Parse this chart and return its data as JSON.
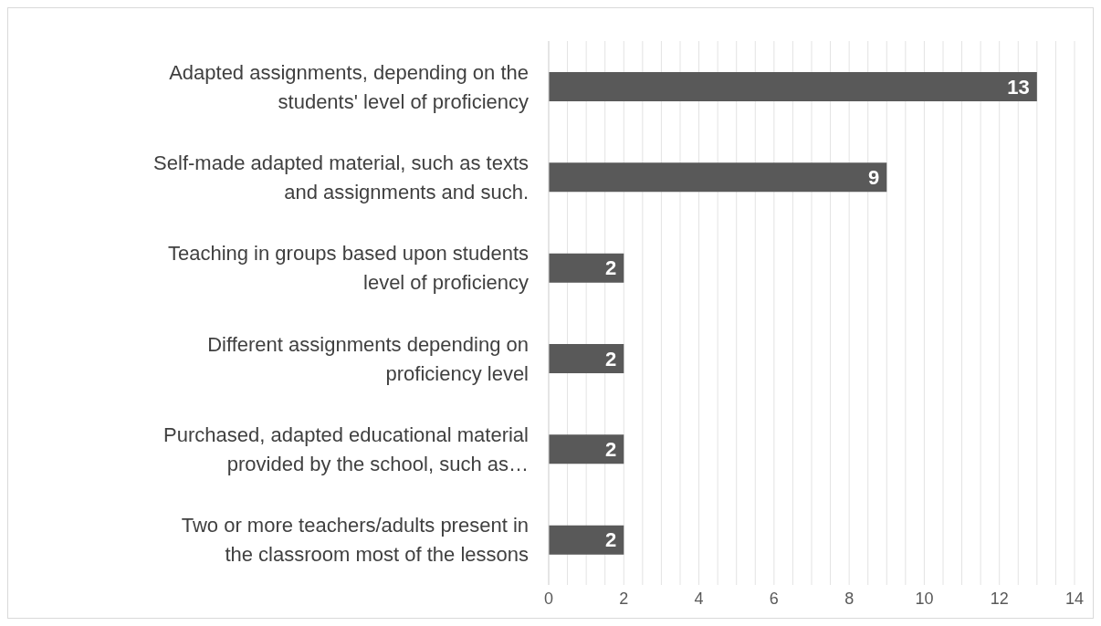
{
  "chart_data": {
    "type": "bar",
    "orientation": "horizontal",
    "categories": [
      "Adapted assignments, depending on the students' level of proficiency",
      "Self-made adapted material, such as texts and assignments and such.",
      "Teaching in groups based upon students level of proficiency",
      "Different assignments depending on proficiency level",
      "Purchased, adapted educational material provided by the school, such as…",
      "Two or more teachers/adults present in the classroom most of the lessons"
    ],
    "values": [
      13,
      9,
      2,
      2,
      2,
      2
    ],
    "color": "#595959",
    "data_labels": true,
    "xlim": [
      0,
      14
    ],
    "xticks": [
      0,
      {
        "value": 0.5,
        "label": null
      },
      {
        "value": 1,
        "label": null
      },
      {
        "value": 1.5,
        "label": null
      },
      2,
      {
        "value": 2.5,
        "label": null
      },
      {
        "value": 3,
        "label": null
      },
      {
        "value": 3.5,
        "label": null
      },
      4,
      {
        "value": 4.5,
        "label": null
      },
      {
        "value": 5,
        "label": null
      },
      {
        "value": 5.5,
        "label": null
      },
      6,
      {
        "value": 6.5,
        "label": null
      },
      {
        "value": 7,
        "label": null
      },
      {
        "value": 7.5,
        "label": null
      },
      8,
      {
        "value": 8.5,
        "label": null
      },
      {
        "value": 9,
        "label": null
      },
      {
        "value": 9.5,
        "label": null
      },
      10,
      {
        "value": 10.5,
        "label": null
      },
      {
        "value": 11,
        "label": null
      },
      {
        "value": 11.5,
        "label": null
      },
      12,
      {
        "value": 12.5,
        "label": null
      },
      {
        "value": 13,
        "label": null
      },
      {
        "value": 13.5,
        "label": null
      },
      14
    ],
    "grid": "x"
  }
}
